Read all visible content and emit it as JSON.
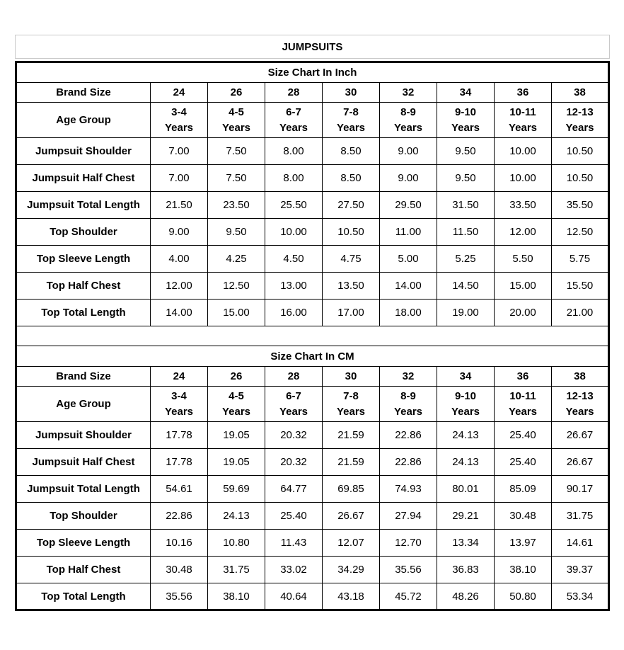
{
  "page_title": "JUMPSUITS",
  "tables": [
    {
      "section_title": "Size Chart In Inch",
      "brand_size_label": "Brand Size",
      "brand_sizes": [
        "24",
        "26",
        "28",
        "30",
        "32",
        "34",
        "36",
        "38"
      ],
      "age_group_label": "Age Group",
      "age_groups": [
        "3-4",
        "4-5",
        "6-7",
        "7-8",
        "8-9",
        "9-10",
        "10-11",
        "12-13"
      ],
      "age_suffix": "Years",
      "rows": [
        {
          "label": "Jumpsuit Shoulder",
          "values": [
            "7.00",
            "7.50",
            "8.00",
            "8.50",
            "9.00",
            "9.50",
            "10.00",
            "10.50"
          ]
        },
        {
          "label": "Jumpsuit Half Chest",
          "values": [
            "7.00",
            "7.50",
            "8.00",
            "8.50",
            "9.00",
            "9.50",
            "10.00",
            "10.50"
          ]
        },
        {
          "label": "Jumpsuit Total Length",
          "values": [
            "21.50",
            "23.50",
            "25.50",
            "27.50",
            "29.50",
            "31.50",
            "33.50",
            "35.50"
          ]
        },
        {
          "label": "Top Shoulder",
          "values": [
            "9.00",
            "9.50",
            "10.00",
            "10.50",
            "11.00",
            "11.50",
            "12.00",
            "12.50"
          ]
        },
        {
          "label": "Top Sleeve Length",
          "values": [
            "4.00",
            "4.25",
            "4.50",
            "4.75",
            "5.00",
            "5.25",
            "5.50",
            "5.75"
          ]
        },
        {
          "label": "Top Half Chest",
          "values": [
            "12.00",
            "12.50",
            "13.00",
            "13.50",
            "14.00",
            "14.50",
            "15.00",
            "15.50"
          ]
        },
        {
          "label": "Top Total Length",
          "values": [
            "14.00",
            "15.00",
            "16.00",
            "17.00",
            "18.00",
            "19.00",
            "20.00",
            "21.00"
          ]
        }
      ]
    },
    {
      "section_title": "Size Chart In CM",
      "brand_size_label": "Brand Size",
      "brand_sizes": [
        "24",
        "26",
        "28",
        "30",
        "32",
        "34",
        "36",
        "38"
      ],
      "age_group_label": "Age Group",
      "age_groups": [
        "3-4",
        "4-5",
        "6-7",
        "7-8",
        "8-9",
        "9-10",
        "10-11",
        "12-13"
      ],
      "age_suffix": "Years",
      "rows": [
        {
          "label": "Jumpsuit Shoulder",
          "values": [
            "17.78",
            "19.05",
            "20.32",
            "21.59",
            "22.86",
            "24.13",
            "25.40",
            "26.67"
          ]
        },
        {
          "label": "Jumpsuit Half Chest",
          "values": [
            "17.78",
            "19.05",
            "20.32",
            "21.59",
            "22.86",
            "24.13",
            "25.40",
            "26.67"
          ]
        },
        {
          "label": "Jumpsuit Total Length",
          "values": [
            "54.61",
            "59.69",
            "64.77",
            "69.85",
            "74.93",
            "80.01",
            "85.09",
            "90.17"
          ]
        },
        {
          "label": "Top Shoulder",
          "values": [
            "22.86",
            "24.13",
            "25.40",
            "26.67",
            "27.94",
            "29.21",
            "30.48",
            "31.75"
          ]
        },
        {
          "label": "Top Sleeve Length",
          "values": [
            "10.16",
            "10.80",
            "11.43",
            "12.07",
            "12.70",
            "13.34",
            "13.97",
            "14.61"
          ]
        },
        {
          "label": "Top Half Chest",
          "values": [
            "30.48",
            "31.75",
            "33.02",
            "34.29",
            "35.56",
            "36.83",
            "38.10",
            "39.37"
          ]
        },
        {
          "label": "Top Total Length",
          "values": [
            "35.56",
            "38.10",
            "40.64",
            "43.18",
            "45.72",
            "48.26",
            "50.80",
            "53.34"
          ]
        }
      ]
    }
  ],
  "colors": {
    "text": "#000000",
    "table_border": "#000000",
    "title_border": "#c9c9c9",
    "background": "#ffffff"
  }
}
